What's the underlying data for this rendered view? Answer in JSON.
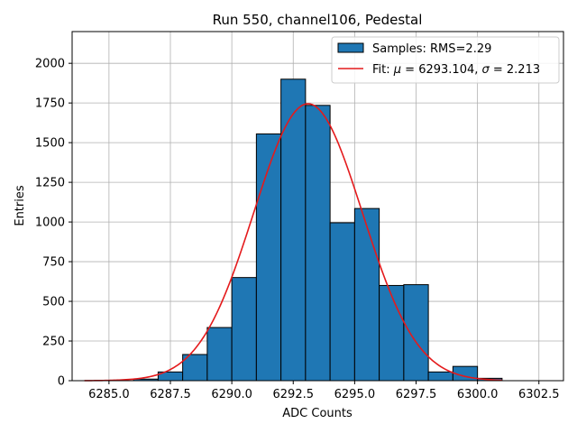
{
  "chart_data": {
    "type": "bar",
    "title": "Run 550, channel106, Pedestal",
    "xlabel": "ADC Counts",
    "ylabel": "Entries",
    "xlim": [
      6283.5,
      6303.5
    ],
    "ylim": [
      0,
      2200
    ],
    "x_ticks": [
      6285.0,
      6287.5,
      6290.0,
      6292.5,
      6295.0,
      6297.5,
      6300.0,
      6302.5
    ],
    "x_tick_labels": [
      "6285.0",
      "6287.5",
      "6290.0",
      "6292.5",
      "6295.0",
      "6297.5",
      "6300.0",
      "6302.5"
    ],
    "y_ticks": [
      0,
      250,
      500,
      750,
      1000,
      1250,
      1500,
      1750,
      2000
    ],
    "y_tick_labels": [
      "0",
      "250",
      "500",
      "750",
      "1000",
      "1250",
      "1500",
      "1750",
      "2000"
    ],
    "grid": true,
    "legend_position": "top-right",
    "series": [
      {
        "name": "Samples: RMS=2.29",
        "kind": "histogram",
        "color": "#1f77b4",
        "edge_color": "#000000",
        "bins": [
          {
            "x0": 6286,
            "x1": 6287,
            "count": 10
          },
          {
            "x0": 6287,
            "x1": 6288,
            "count": 55
          },
          {
            "x0": 6288,
            "x1": 6289,
            "count": 165
          },
          {
            "x0": 6289,
            "x1": 6290,
            "count": 335
          },
          {
            "x0": 6290,
            "x1": 6291,
            "count": 650
          },
          {
            "x0": 6291,
            "x1": 6292,
            "count": 1555
          },
          {
            "x0": 6292,
            "x1": 6293,
            "count": 1900
          },
          {
            "x0": 6293,
            "x1": 6294,
            "count": 1735
          },
          {
            "x0": 6294,
            "x1": 6295,
            "count": 995
          },
          {
            "x0": 6295,
            "x1": 6296,
            "count": 1085
          },
          {
            "x0": 6296,
            "x1": 6297,
            "count": 600
          },
          {
            "x0": 6297,
            "x1": 6298,
            "count": 605
          },
          {
            "x0": 6298,
            "x1": 6299,
            "count": 55
          },
          {
            "x0": 6299,
            "x1": 6300,
            "count": 90
          },
          {
            "x0": 6300,
            "x1": 6301,
            "count": 15
          }
        ]
      },
      {
        "name_prefix": "Fit: ",
        "name_mu_symbol": "μ",
        "name_mu_text": " = 6293.104, ",
        "name_sigma_symbol": "σ",
        "name_sigma_text": " = 2.213",
        "kind": "gaussian-fit",
        "color": "#e41a1c",
        "mu": 6293.104,
        "sigma": 2.213,
        "amplitude": 1745,
        "x_range": [
          6284,
          6301
        ]
      }
    ]
  }
}
